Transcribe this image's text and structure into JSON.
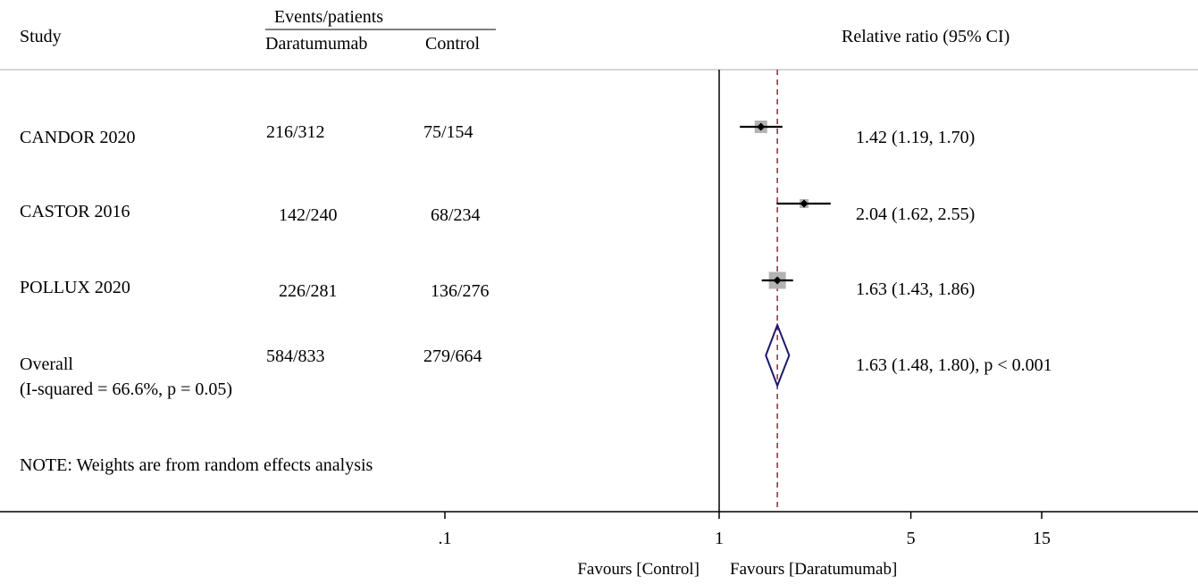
{
  "header": {
    "study_label": "Study",
    "events_label": "Events/patients",
    "treatment_label": "Daratumumab",
    "control_label": "Control",
    "effect_label": "Relative ratio (95% CI)"
  },
  "chart_data": {
    "type": "forest",
    "x_scale": "log",
    "x_ticks": [
      {
        "value": 0.1,
        "label": ".1"
      },
      {
        "value": 1,
        "label": "1"
      },
      {
        "value": 5,
        "label": "5"
      },
      {
        "value": 15,
        "label": "15"
      }
    ],
    "xlim": [
      0.0133,
      100
    ],
    "reference_line": 1,
    "overall_line": 1.63,
    "studies": [
      {
        "name": "CANDOR 2020",
        "treatment_events": "216/312",
        "control_events": "75/154",
        "estimate": 1.42,
        "ci_low": 1.19,
        "ci_high": 1.7,
        "label": "1.42 (1.19, 1.70)"
      },
      {
        "name": "CASTOR 2016",
        "treatment_events": "142/240",
        "control_events": "68/234",
        "estimate": 2.04,
        "ci_low": 1.62,
        "ci_high": 2.55,
        "label": "2.04 (1.62, 2.55)"
      },
      {
        "name": "POLLUX 2020",
        "treatment_events": "226/281",
        "control_events": "136/276",
        "estimate": 1.63,
        "ci_low": 1.43,
        "ci_high": 1.86,
        "label": "1.63 (1.43, 1.86)"
      }
    ],
    "overall": {
      "name": "Overall",
      "heterogeneity": "(I-squared = 66.6%, p = 0.05)",
      "treatment_events": "584/833",
      "control_events": "279/664",
      "estimate": 1.63,
      "ci_low": 1.48,
      "ci_high": 1.8,
      "label": "1.63 (1.48, 1.80)",
      "p_value": ", p < 0.001"
    },
    "note": "NOTE: Weights are from random effects analysis",
    "favours_left": "Favours [Control]",
    "favours_right": "Favours [Daratumumab]",
    "colors": {
      "overall_line": "#8b2a3a",
      "diamond": "#1a1a6e",
      "weight_box": "#b3b3b3",
      "header_rule": "#c8c8c8"
    }
  }
}
